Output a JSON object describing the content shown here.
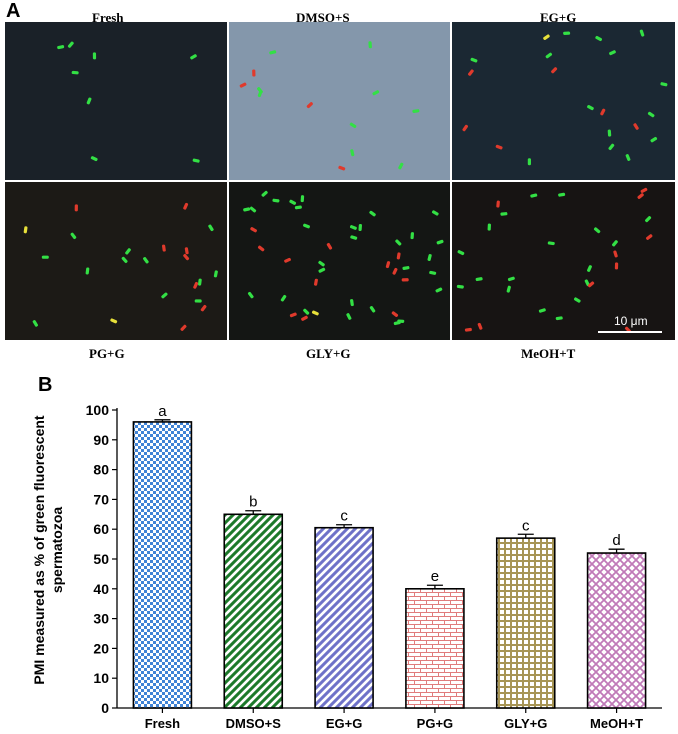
{
  "figure": {
    "panel_a_label": "A",
    "panel_b_label": "B",
    "scale_bar_label": "10 μm"
  },
  "micrographs": [
    {
      "title": "Fresh",
      "bg": "#1a2128",
      "green": 8,
      "red": 0,
      "yellow": 0
    },
    {
      "title": "DMSO+S",
      "bg": "#8497ab",
      "green": 9,
      "red": 4,
      "yellow": 0
    },
    {
      "title": "EG+G",
      "bg": "#1b2833",
      "green": 14,
      "red": 6,
      "yellow": 1
    },
    {
      "title": "PG+G",
      "bg": "#1c1a16",
      "green": 12,
      "red": 8,
      "yellow": 2
    },
    {
      "title": "GLY+G",
      "bg": "#141614",
      "green": 30,
      "red": 12,
      "yellow": 1
    },
    {
      "title": "MeOH+T",
      "bg": "#171413",
      "green": 18,
      "red": 10,
      "yellow": 0
    }
  ],
  "chart_data": {
    "type": "bar",
    "categories": [
      "Fresh",
      "DMSO+S",
      "EG+G",
      "PG+G",
      "GLY+G",
      "MeOH+T"
    ],
    "values": [
      96,
      65,
      60.5,
      40,
      57,
      52
    ],
    "errors": [
      0.7,
      1.2,
      1.0,
      1.2,
      1.3,
      1.3
    ],
    "significance": [
      "a",
      "b",
      "c",
      "e",
      "c",
      "d"
    ],
    "ylabel": "PMI measured as % of green fluorescent spermatozoa",
    "xlabel": "",
    "ylim": [
      0,
      100
    ],
    "yticks": [
      0,
      10,
      20,
      30,
      40,
      50,
      60,
      70,
      80,
      90,
      100
    ],
    "colors": [
      "#3f83d6",
      "#1d7a2b",
      "#6f72c8",
      "#e07c7c",
      "#a79555",
      "#c07ab8"
    ],
    "patterns": [
      "checker",
      "diagonal",
      "diagonal",
      "brick",
      "grid",
      "diamond"
    ]
  }
}
